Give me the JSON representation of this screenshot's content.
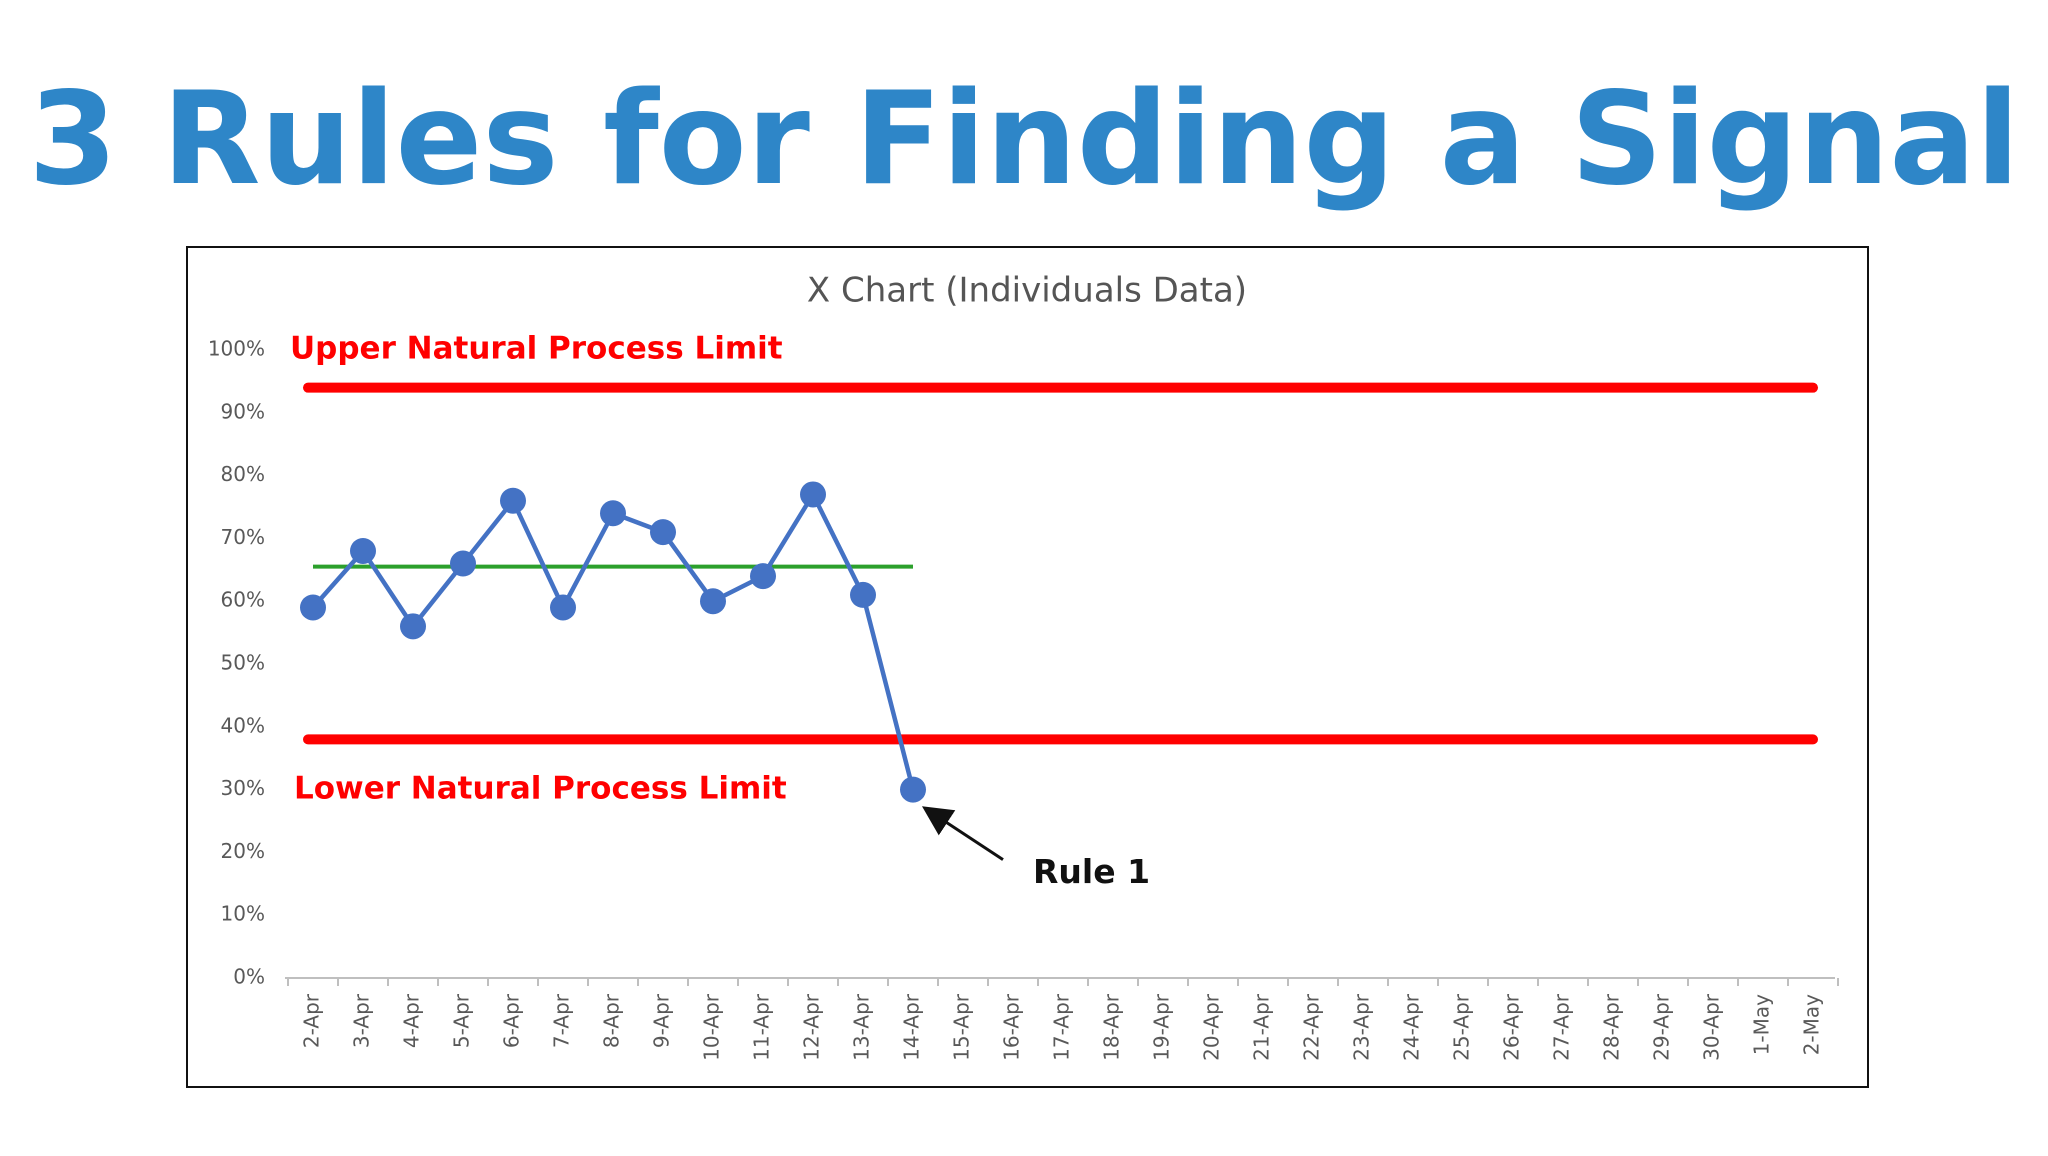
{
  "heading": "3 Rules for Finding a Signal",
  "chart_data": {
    "type": "line",
    "title": "X Chart (Individuals Data)",
    "categories": [
      "2-Apr",
      "3-Apr",
      "4-Apr",
      "5-Apr",
      "6-Apr",
      "7-Apr",
      "8-Apr",
      "9-Apr",
      "10-Apr",
      "11-Apr",
      "12-Apr",
      "13-Apr",
      "14-Apr",
      "15-Apr",
      "16-Apr",
      "17-Apr",
      "18-Apr",
      "19-Apr",
      "20-Apr",
      "21-Apr",
      "22-Apr",
      "23-Apr",
      "24-Apr",
      "25-Apr",
      "26-Apr",
      "27-Apr",
      "28-Apr",
      "29-Apr",
      "30-Apr",
      "1-May",
      "2-May"
    ],
    "values": [
      59,
      68,
      56,
      66,
      76,
      59,
      74,
      71,
      60,
      64,
      77,
      61,
      30,
      null,
      null,
      null,
      null,
      null,
      null,
      null,
      null,
      null,
      null,
      null,
      null,
      null,
      null,
      null,
      null,
      null,
      null
    ],
    "color": "#4472c4",
    "center_line": {
      "value": 65.5,
      "color": "#2ca02c"
    },
    "limits": [
      {
        "label": "Upper Natural Process Limit",
        "value": 94,
        "color": "#ff0000"
      },
      {
        "label": "Lower Natural Process Limit",
        "value": 38,
        "color": "#ff0000"
      }
    ],
    "annotation": "Rule 1",
    "ylim": [
      0,
      100
    ],
    "yticks": [
      {
        "value": 0,
        "label": "0%"
      },
      {
        "value": 10,
        "label": "10%"
      },
      {
        "value": 20,
        "label": "20%"
      },
      {
        "value": 30,
        "label": "30%"
      },
      {
        "value": 40,
        "label": "40%"
      },
      {
        "value": 50,
        "label": "50%"
      },
      {
        "value": 60,
        "label": "60%"
      },
      {
        "value": 70,
        "label": "70%"
      },
      {
        "value": 80,
        "label": "80%"
      },
      {
        "value": 90,
        "label": "90%"
      },
      {
        "value": 100,
        "label": "100%"
      }
    ],
    "grid": false
  }
}
